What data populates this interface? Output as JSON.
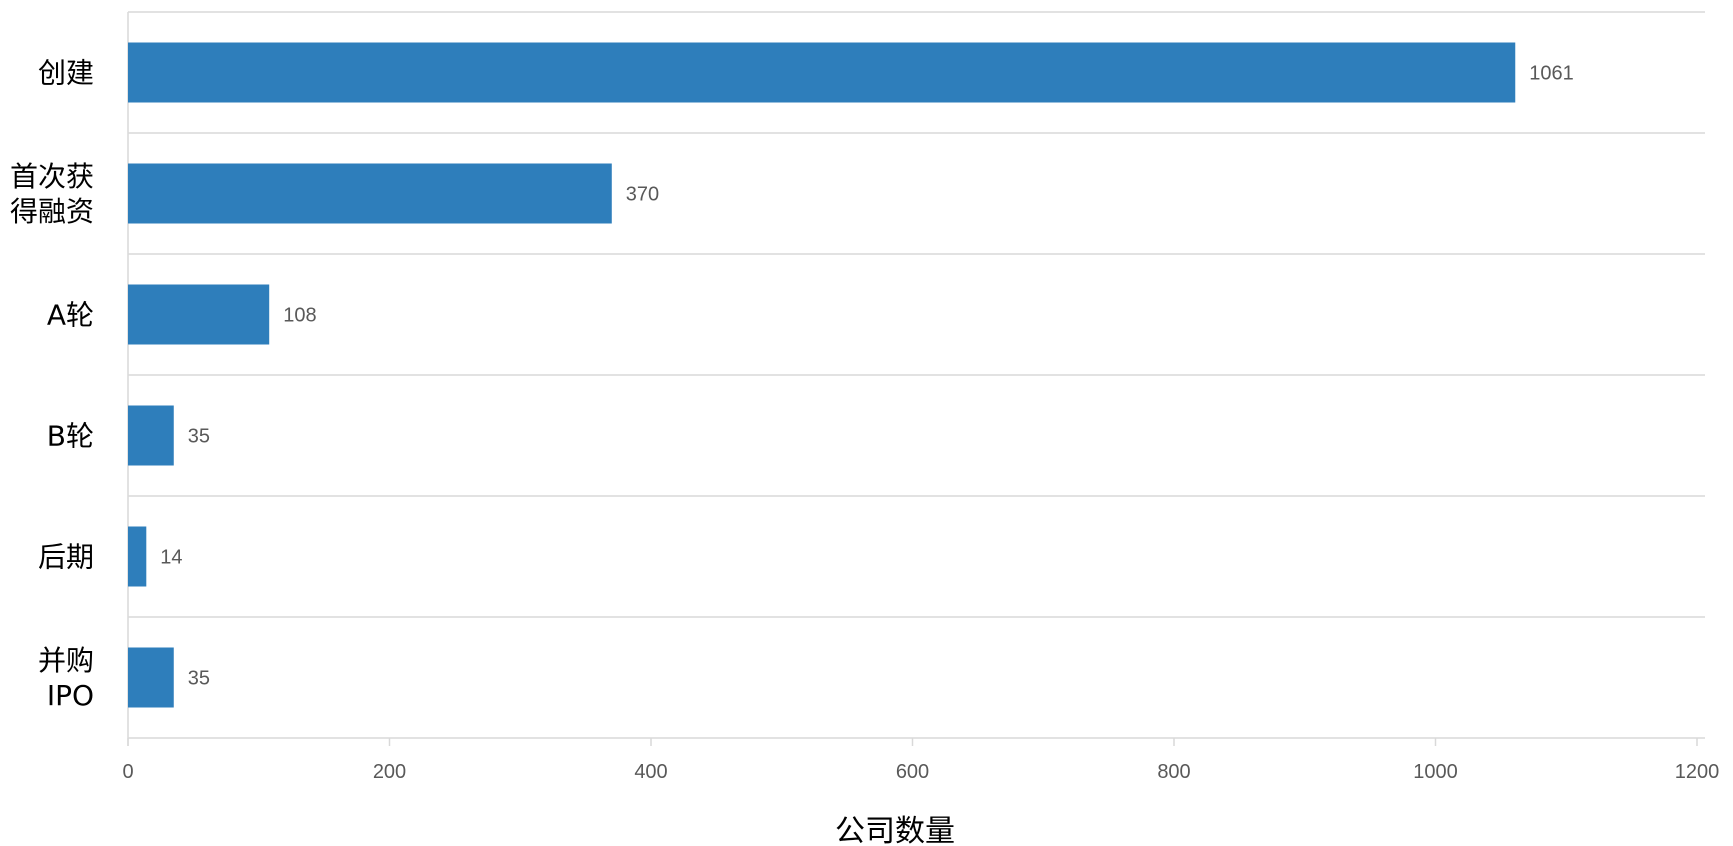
{
  "chart_data": {
    "type": "bar",
    "orientation": "horizontal",
    "categories": [
      "创建",
      "首次获得融资",
      "A轮",
      "B轮",
      "后期",
      "并购IPO"
    ],
    "category_lines": [
      [
        "创建"
      ],
      [
        "首次获",
        "得融资"
      ],
      [
        "A轮"
      ],
      [
        "B轮"
      ],
      [
        "后期"
      ],
      [
        "并购",
        "IPO"
      ]
    ],
    "values": [
      1061,
      370,
      108,
      35,
      14,
      35
    ],
    "data_labels": [
      "1061",
      "370",
      "108",
      "35",
      "14",
      "35"
    ],
    "xlabel": "公司数量",
    "ylabel": "",
    "xlim": [
      0,
      1200
    ],
    "x_ticks": [
      0,
      200,
      400,
      600,
      800,
      1000,
      1200
    ],
    "x_tick_labels": [
      "0",
      "200",
      "400",
      "600",
      "800",
      "1000",
      "1200"
    ],
    "grid": "horizontal separators between categories",
    "legend": "none",
    "colors": {
      "bar": "#2e7ebb",
      "grid": "#d9d9d9",
      "tick_text": "#595959",
      "label_text": "#000000"
    }
  }
}
